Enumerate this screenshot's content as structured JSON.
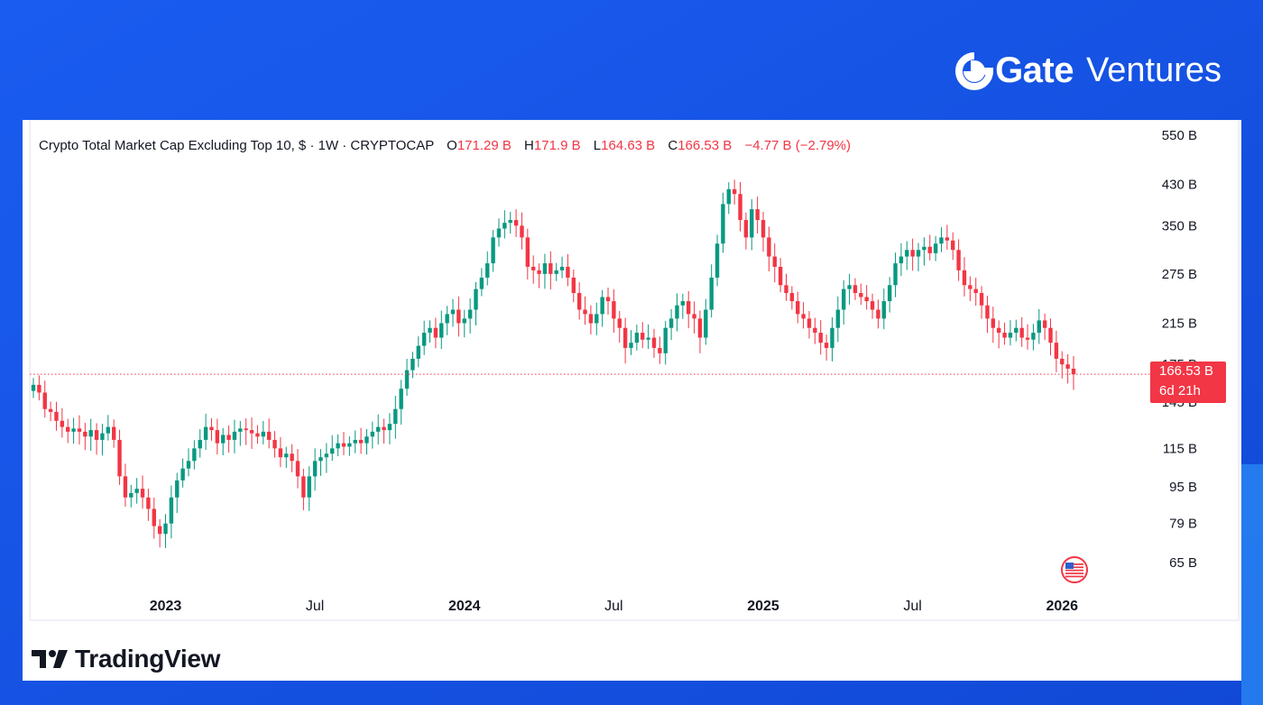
{
  "brand": {
    "logo_text": "Gate",
    "logo_sub": "Ventures",
    "background": "#1657e8"
  },
  "tradingview": {
    "label": "TradingView"
  },
  "legend": {
    "symbol": "Crypto Total Market Cap Excluding Top 10, $ · 1W · CRYPTOCAP",
    "open_label": "O",
    "open": "171.29 B",
    "high_label": "H",
    "high": "171.9 B",
    "low_label": "L",
    "low": "164.63 B",
    "close_label": "C",
    "close": "166.53 B",
    "change": "−4.77 B (−2.79%)"
  },
  "price_tag": {
    "price": "166.53 B",
    "countdown": "6d 21h"
  },
  "flag_icon": "us-flag-icon",
  "chart_data": {
    "type": "candlestick",
    "title": "Crypto Total Market Cap Excluding Top 10, $ · 1W · CRYPTOCAP",
    "y_scale": "log",
    "y_ticks": [
      "550 B",
      "430 B",
      "350 B",
      "275 B",
      "215 B",
      "175 B",
      "145 B",
      "115 B",
      "95 B",
      "79 B",
      "65 B"
    ],
    "y_tick_values": [
      550,
      430,
      350,
      275,
      215,
      175,
      145,
      115,
      95,
      79,
      65
    ],
    "x_ticks": [
      "2023",
      "Jul",
      "2024",
      "Jul",
      "2025",
      "Jul",
      "2026"
    ],
    "x_tick_weeks": [
      23,
      49,
      75,
      101,
      127,
      153,
      179
    ],
    "last_price": 166.53,
    "up_color": "#089981",
    "down_color": "#f23645",
    "start_week": 0,
    "close_series_billions": [
      158,
      152,
      140,
      138,
      132,
      128,
      125,
      127,
      125,
      122,
      126,
      120,
      124,
      128,
      120,
      100,
      90,
      92,
      94,
      90,
      85,
      78,
      75,
      79,
      90,
      98,
      104,
      108,
      115,
      120,
      128,
      126,
      118,
      123,
      120,
      125,
      127,
      126,
      124,
      122,
      125,
      120,
      115,
      110,
      112,
      108,
      100,
      90,
      100,
      108,
      110,
      112,
      115,
      118,
      116,
      118,
      120,
      118,
      122,
      125,
      128,
      126,
      130,
      140,
      155,
      170,
      180,
      192,
      205,
      210,
      200,
      215,
      225,
      230,
      215,
      220,
      230,
      255,
      270,
      290,
      330,
      345,
      355,
      360,
      350,
      330,
      285,
      280,
      275,
      290,
      275,
      280,
      285,
      270,
      250,
      230,
      225,
      215,
      225,
      245,
      240,
      220,
      210,
      190,
      195,
      205,
      198,
      200,
      190,
      185,
      210,
      220,
      235,
      240,
      225,
      220,
      200,
      230,
      270,
      320,
      390,
      420,
      410,
      360,
      330,
      380,
      360,
      330,
      300,
      285,
      260,
      250,
      240,
      225,
      220,
      210,
      205,
      195,
      190,
      210,
      230,
      255,
      260,
      250,
      245,
      240,
      230,
      220,
      240,
      260,
      290,
      300,
      310,
      300,
      310,
      315,
      305,
      320,
      330,
      325,
      310,
      280,
      260,
      255,
      250,
      235,
      220,
      210,
      205,
      200,
      205,
      210,
      200,
      198,
      205,
      218,
      210,
      195,
      180,
      175,
      171.29,
      166.53
    ]
  }
}
